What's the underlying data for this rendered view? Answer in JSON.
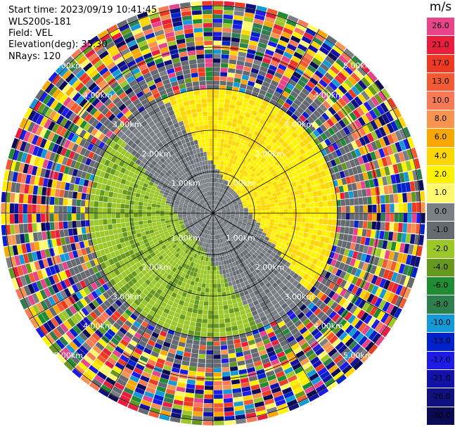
{
  "header": {
    "start_time": "Start time: 2023/09/19 10:41:45",
    "instrument": "WLS200s-181",
    "field": "Field: VEL",
    "elevation": "Elevation(deg): 35.30",
    "nrays": "NRays: 120"
  },
  "colorbar": {
    "unit": "m/s",
    "levels": [
      {
        "label": "26.0",
        "color": "#e8448c"
      },
      {
        "label": "21.0",
        "color": "#e81e3c"
      },
      {
        "label": "17.0",
        "color": "#ee3a23"
      },
      {
        "label": "13.0",
        "color": "#f25a34"
      },
      {
        "label": "10.0",
        "color": "#f57a55"
      },
      {
        "label": "8.0",
        "color": "#f7944f"
      },
      {
        "label": "6.0",
        "color": "#f8a800"
      },
      {
        "label": "4.0",
        "color": "#ffd600"
      },
      {
        "label": "2.0",
        "color": "#fff200"
      },
      {
        "label": "1.0",
        "color": "#fff96e"
      },
      {
        "label": "0.0",
        "color": "#7a7f86"
      },
      {
        "label": "-1.0",
        "color": "#656a70"
      },
      {
        "label": "-2.0",
        "color": "#9bc728"
      },
      {
        "label": "-4.0",
        "color": "#66981d"
      },
      {
        "label": "-6.0",
        "color": "#1f8c33"
      },
      {
        "label": "-8.0",
        "color": "#2e7f4e"
      },
      {
        "label": "-10.0",
        "color": "#1499d6"
      },
      {
        "label": "-13.0",
        "color": "#0022cc"
      },
      {
        "label": "-17.0",
        "color": "#1c1ce6"
      },
      {
        "label": "-21.0",
        "color": "#1212aa"
      },
      {
        "label": "-26.0",
        "color": "#101080"
      },
      {
        "label": "-30.0",
        "color": "#0a0a55"
      }
    ]
  },
  "ring_labels": [
    "1.00km",
    "2.00km",
    "3.00km",
    "4.00km",
    "5.00km"
  ]
}
